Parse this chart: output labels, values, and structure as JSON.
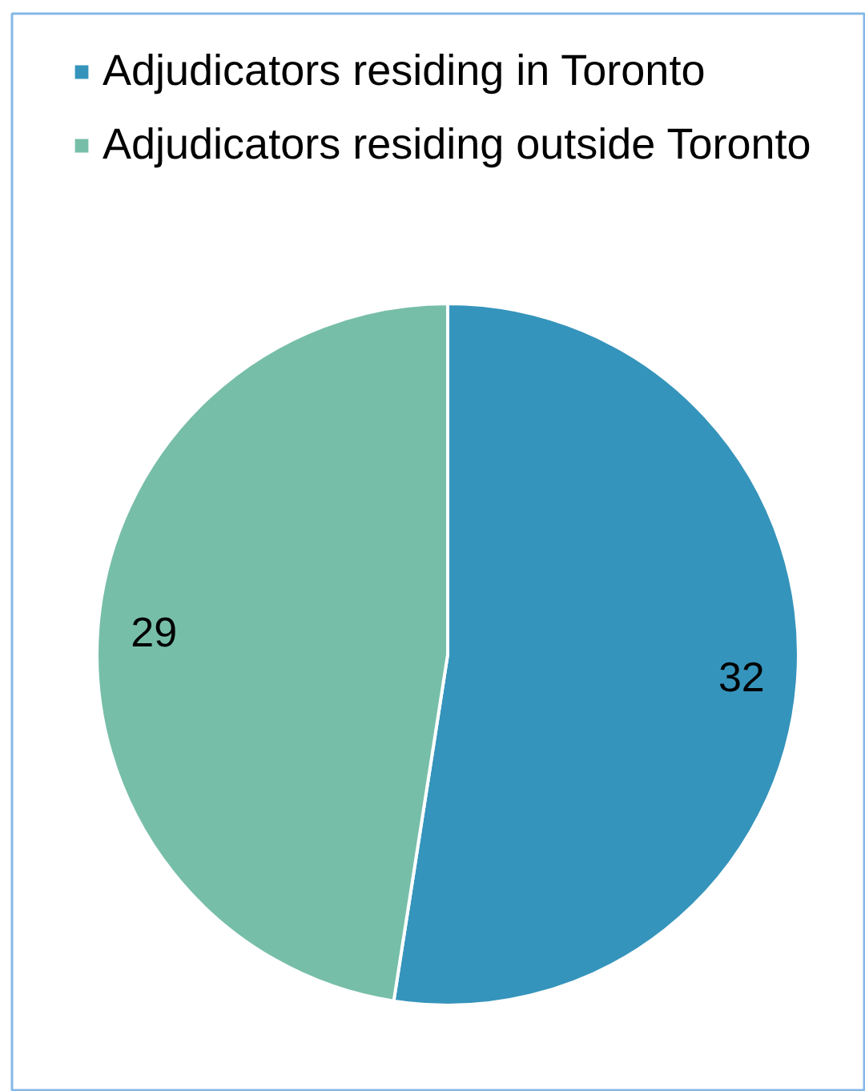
{
  "chart_data": {
    "type": "pie",
    "categories": [
      "Adjudicators residing in Toronto",
      "Adjudicators residing outside Toronto"
    ],
    "values": [
      32,
      29
    ],
    "colors": [
      "#3594bb",
      "#77bea8"
    ],
    "data_labels": true,
    "legend": "top left"
  }
}
